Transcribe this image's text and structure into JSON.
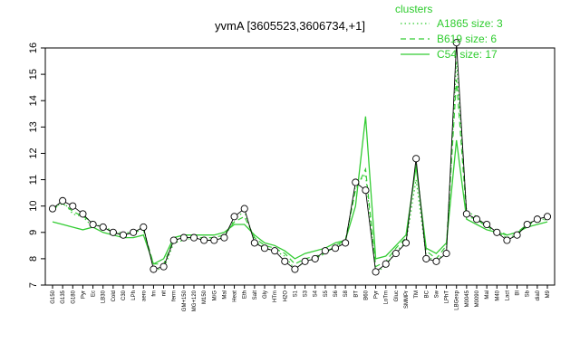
{
  "chart_data": {
    "type": "line",
    "title": "yvmA [3605523,3606734,+1]",
    "ylim": [
      7,
      16
    ],
    "yticks": [
      7,
      8,
      9,
      10,
      11,
      12,
      13,
      14,
      15,
      16
    ],
    "legend": {
      "title": "clusters",
      "position": "top-right",
      "entries": [
        {
          "label": "A1865 size: 3",
          "style": "dotted"
        },
        {
          "label": "B619 size: 6",
          "style": "dashed"
        },
        {
          "label": "C54 size: 17",
          "style": "solid"
        }
      ]
    },
    "x_tick_labels": [
      "G150",
      "G135",
      "G180",
      "Pyr",
      "Ec",
      "LB30",
      "Cold",
      "C30",
      "LPh",
      "aero",
      "fm",
      "nit",
      "ferm",
      "GM+150",
      "MG+120",
      "M150",
      "M/G",
      "Mal",
      "Heat",
      "Eth",
      "Salt",
      "Gly",
      "HTm",
      "H2O",
      "S1",
      "S3",
      "S4",
      "S5",
      "S6",
      "S8",
      "BT",
      "B60",
      "Pyr",
      "LoTm",
      "Gluc",
      "SMMPr",
      "TM",
      "BC",
      "Sw",
      "LPhT",
      "LBGexp",
      "M0045",
      "M0090",
      "Mal",
      "M40",
      "Lact",
      "BI",
      "Sb",
      "dia0",
      "M9"
    ],
    "series": [
      {
        "name": "A1865 size: 3",
        "style": "dotted",
        "x": [
          1,
          2,
          3,
          4,
          5,
          6,
          7,
          8,
          9,
          10,
          11,
          12,
          13,
          14,
          15,
          16,
          17,
          18,
          19,
          20,
          21,
          22,
          23,
          24,
          25,
          26,
          27,
          28,
          29,
          30,
          31,
          32,
          33,
          34,
          35,
          36,
          37,
          38,
          39,
          40,
          41,
          42,
          43,
          44,
          45,
          46,
          47,
          48,
          49,
          50
        ],
        "values": [
          9.8,
          10.2,
          9.7,
          9.6,
          9.2,
          9.3,
          9.0,
          9.0,
          9.0,
          9.2,
          7.6,
          7.6,
          8.6,
          8.7,
          8.8,
          8.7,
          8.7,
          8.8,
          9.5,
          9.8,
          8.7,
          8.4,
          8.3,
          8.1,
          7.6,
          7.9,
          8.0,
          8.2,
          8.5,
          8.6,
          10.8,
          11.2,
          7.5,
          7.7,
          8.3,
          8.6,
          11.0,
          8.1,
          7.9,
          8.3,
          15.5,
          9.8,
          9.6,
          9.2,
          9.0,
          8.8,
          8.9,
          9.3,
          9.5,
          9.5
        ]
      },
      {
        "name": "B619 size: 6",
        "style": "dashed",
        "x": [
          1,
          2,
          3,
          4,
          5,
          6,
          7,
          8,
          9,
          10,
          11,
          12,
          13,
          14,
          15,
          16,
          17,
          18,
          19,
          20,
          21,
          22,
          23,
          24,
          25,
          26,
          27,
          28,
          29,
          30,
          31,
          32,
          33,
          34,
          35,
          36,
          37,
          38,
          39,
          40,
          41,
          42,
          43,
          44,
          45,
          46,
          47,
          48,
          49,
          50
        ],
        "values": [
          9.9,
          10.1,
          9.8,
          9.6,
          9.4,
          9.2,
          9.0,
          8.9,
          9.0,
          9.1,
          7.8,
          7.8,
          8.7,
          8.8,
          8.8,
          8.8,
          8.8,
          8.9,
          9.4,
          9.6,
          8.8,
          8.5,
          8.4,
          8.2,
          7.8,
          8.0,
          8.1,
          8.2,
          8.5,
          8.7,
          10.6,
          11.4,
          7.7,
          7.9,
          8.4,
          8.8,
          11.6,
          8.3,
          8.0,
          8.5,
          14.8,
          9.6,
          9.5,
          9.2,
          9.1,
          8.9,
          9.0,
          9.3,
          9.4,
          9.5
        ]
      },
      {
        "name": "C54 size: 17",
        "style": "solid",
        "x": [
          1,
          2,
          3,
          4,
          5,
          6,
          7,
          8,
          9,
          10,
          11,
          12,
          13,
          14,
          15,
          16,
          17,
          18,
          19,
          20,
          21,
          22,
          23,
          24,
          25,
          26,
          27,
          28,
          29,
          30,
          31,
          32,
          33,
          34,
          35,
          36,
          37,
          38,
          39,
          40,
          41,
          42,
          43,
          44,
          45,
          46,
          47,
          48,
          49,
          50
        ],
        "values": [
          9.4,
          9.3,
          9.2,
          9.1,
          9.2,
          9.0,
          8.9,
          8.8,
          8.8,
          8.9,
          7.8,
          8.0,
          8.8,
          8.9,
          8.9,
          8.9,
          8.9,
          9.0,
          9.3,
          9.3,
          8.9,
          8.6,
          8.5,
          8.3,
          8.0,
          8.2,
          8.3,
          8.4,
          8.6,
          8.7,
          10.0,
          13.4,
          8.0,
          8.1,
          8.5,
          8.9,
          11.5,
          8.4,
          8.2,
          8.6,
          12.5,
          9.5,
          9.3,
          9.1,
          9.0,
          8.9,
          9.0,
          9.2,
          9.3,
          9.4
        ]
      },
      {
        "name": "points",
        "style": "markers",
        "x": [
          1,
          2,
          3,
          4,
          5,
          6,
          7,
          8,
          9,
          10,
          11,
          12,
          13,
          14,
          15,
          16,
          17,
          18,
          19,
          20,
          21,
          22,
          23,
          24,
          25,
          26,
          27,
          28,
          29,
          30,
          31,
          32,
          33,
          34,
          35,
          36,
          37,
          38,
          39,
          40,
          41,
          42,
          43,
          44,
          45,
          46,
          47,
          48,
          49,
          50
        ],
        "values": [
          9.9,
          10.2,
          10.0,
          9.7,
          9.3,
          9.2,
          9.0,
          8.9,
          9.0,
          9.2,
          7.6,
          7.7,
          8.7,
          8.8,
          8.8,
          8.7,
          8.7,
          8.8,
          9.6,
          9.9,
          8.6,
          8.4,
          8.3,
          7.9,
          7.6,
          7.9,
          8.0,
          8.3,
          8.4,
          8.6,
          10.9,
          10.6,
          7.5,
          7.8,
          8.2,
          8.6,
          11.8,
          8.0,
          7.9,
          8.2,
          16.2,
          9.7,
          9.5,
          9.3,
          9.0,
          8.7,
          8.9,
          9.3,
          9.5,
          9.6
        ]
      }
    ]
  },
  "colors": {
    "series": "#33cc33",
    "markers": "#000000",
    "axis": "#000000"
  }
}
